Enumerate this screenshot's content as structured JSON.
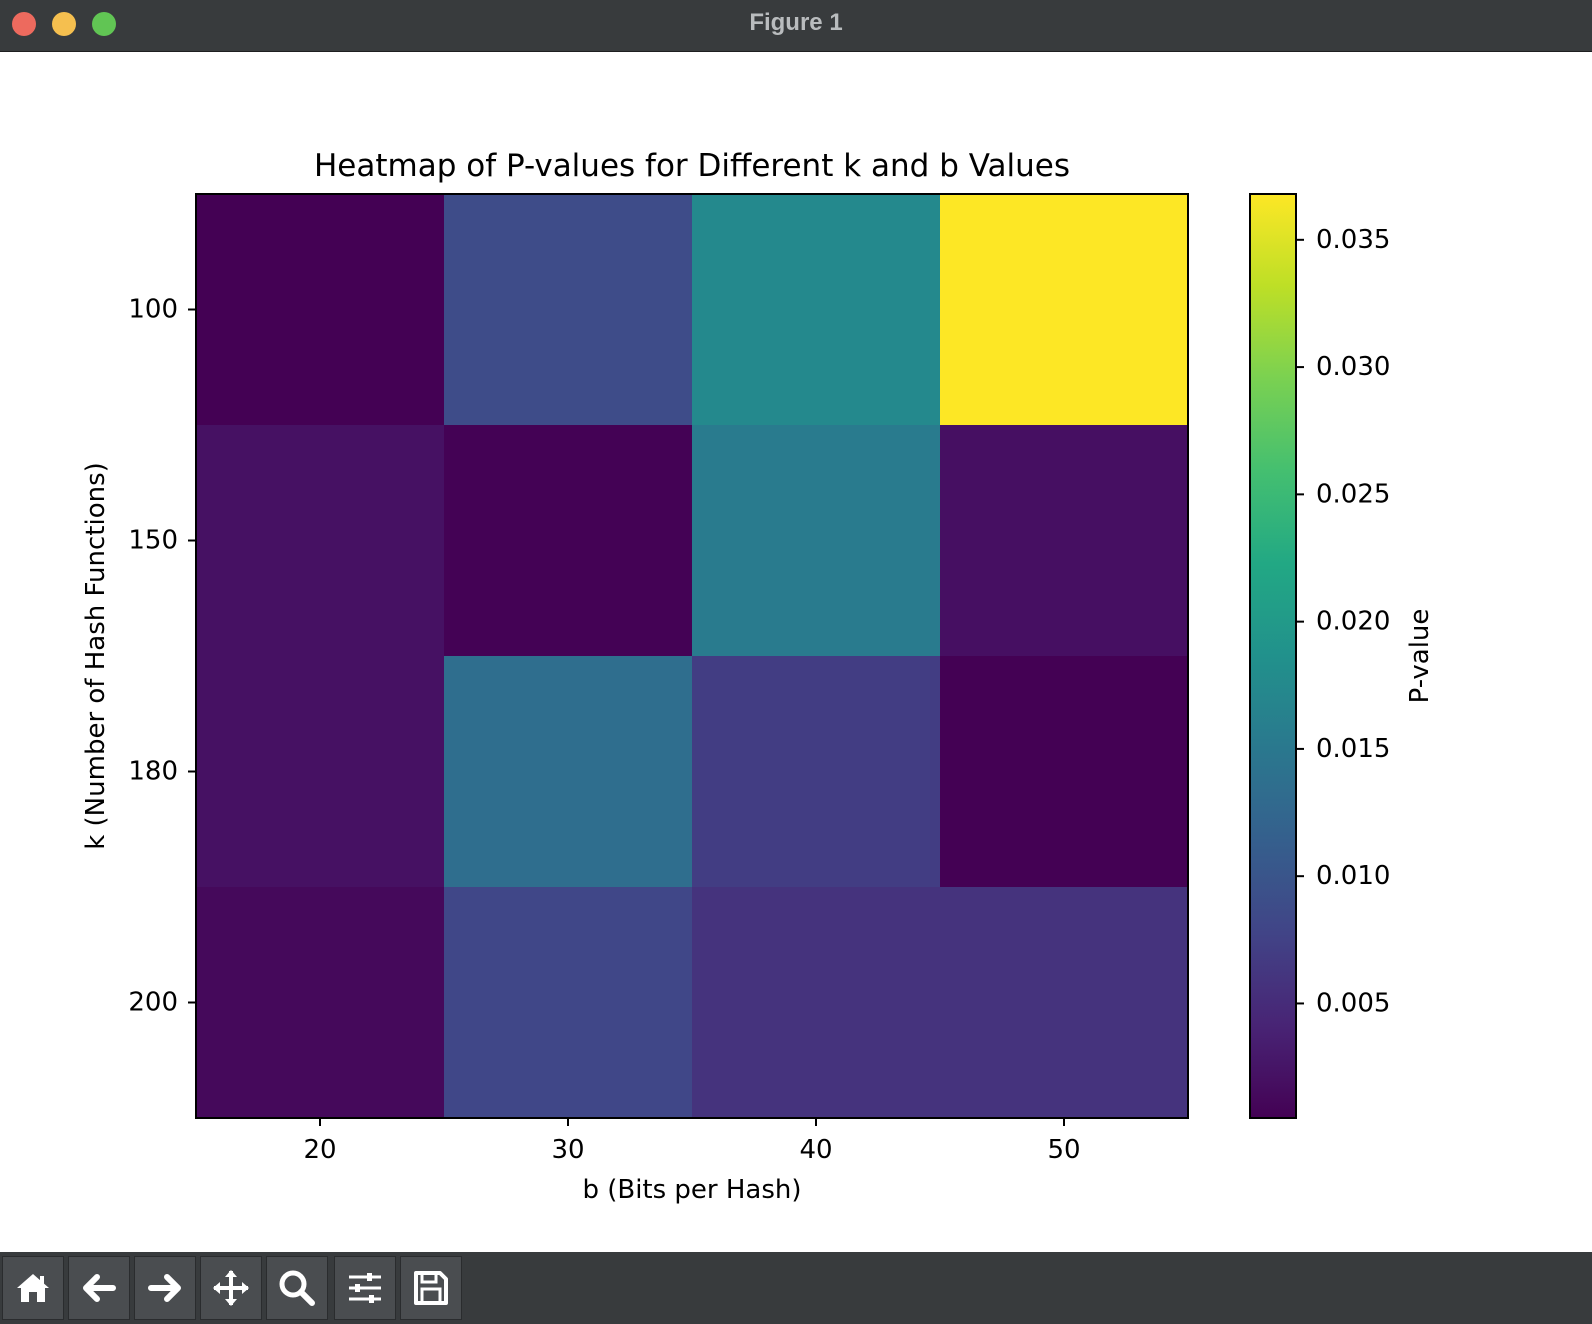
{
  "window": {
    "title": "Figure 1"
  },
  "toolbar": {
    "buttons": [
      {
        "name": "home-button",
        "icon": "home-icon"
      },
      {
        "name": "back-button",
        "icon": "arrow-left-icon"
      },
      {
        "name": "forward-button",
        "icon": "arrow-right-icon"
      },
      {
        "name": "pan-button",
        "icon": "move-icon"
      },
      {
        "name": "zoom-button",
        "icon": "search-icon"
      },
      {
        "name": "configure-subplots-button",
        "icon": "sliders-icon"
      },
      {
        "name": "save-button",
        "icon": "save-icon"
      }
    ]
  },
  "chart_data": {
    "type": "heatmap",
    "title": "Heatmap of P-values for Different k and b Values",
    "xlabel": "b (Bits per Hash)",
    "ylabel": "k (Number of Hash Functions)",
    "x": [
      "20",
      "30",
      "40",
      "50"
    ],
    "y": [
      "100",
      "150",
      "180",
      "200"
    ],
    "values": [
      [
        0.0005,
        0.0088,
        0.0175,
        0.0368
      ],
      [
        0.0022,
        0.0006,
        0.0155,
        0.002
      ],
      [
        0.0022,
        0.0135,
        0.007,
        0.0005
      ],
      [
        0.0013,
        0.0082,
        0.0058,
        0.0058
      ]
    ],
    "colormap": "viridis",
    "clim": [
      0.0005,
      0.0368
    ],
    "colorbar": {
      "label": "P-value",
      "ticks": [
        0.005,
        0.01,
        0.015,
        0.02,
        0.025,
        0.03,
        0.035
      ],
      "tick_labels": [
        "0.005",
        "0.010",
        "0.015",
        "0.020",
        "0.025",
        "0.030",
        "0.035"
      ]
    }
  }
}
